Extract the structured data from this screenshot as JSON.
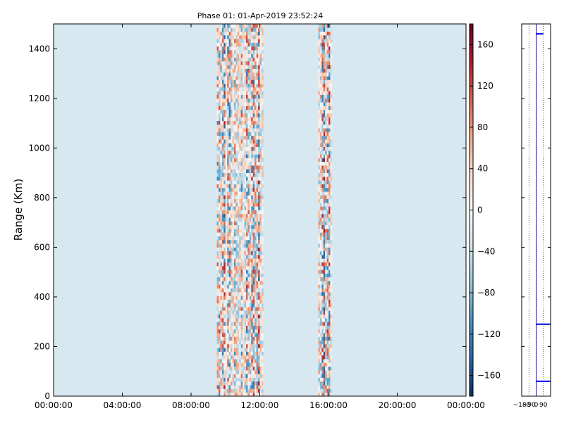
{
  "chart_data": [
    {
      "type": "heatmap",
      "title": "Phase 01: 01-Apr-2019 23:52:24",
      "ylabel": "Range (Km)",
      "xlabel": "",
      "x_ticks": [
        "00:00:00",
        "04:00:00",
        "08:00:00",
        "12:00:00",
        "16:00:00",
        "20:00:00",
        "00:00:00"
      ],
      "x_range_hours": [
        0,
        24
      ],
      "y_ticks": [
        0,
        200,
        400,
        600,
        800,
        1000,
        1200,
        1400
      ],
      "ylim": [
        0,
        1500
      ],
      "colormap": "RdBu_r",
      "background_value": -30,
      "colorbar": {
        "range": [
          -180,
          180
        ],
        "ticks": [
          "160",
          "120",
          "80",
          "40",
          "0",
          "−40",
          "−80",
          "−120",
          "−160"
        ],
        "tick_values": [
          160,
          120,
          80,
          40,
          0,
          -40,
          -80,
          -120,
          -160
        ]
      },
      "noisy_bands_hours": [
        [
          9.5,
          12.2
        ],
        [
          15.4,
          16.2
        ]
      ],
      "bands_lower_limit_km": [
        0,
        1500
      ]
    },
    {
      "type": "line",
      "title": "",
      "x_ticks": [
        "−180",
        "−90",
        "0",
        "90"
      ],
      "xlim": [
        -180,
        180
      ],
      "ylim": [
        0,
        1500
      ],
      "grid": "vertical dotted",
      "marker_ranges_km": [
        1460,
        290,
        60
      ],
      "color": "#0000ff"
    }
  ]
}
